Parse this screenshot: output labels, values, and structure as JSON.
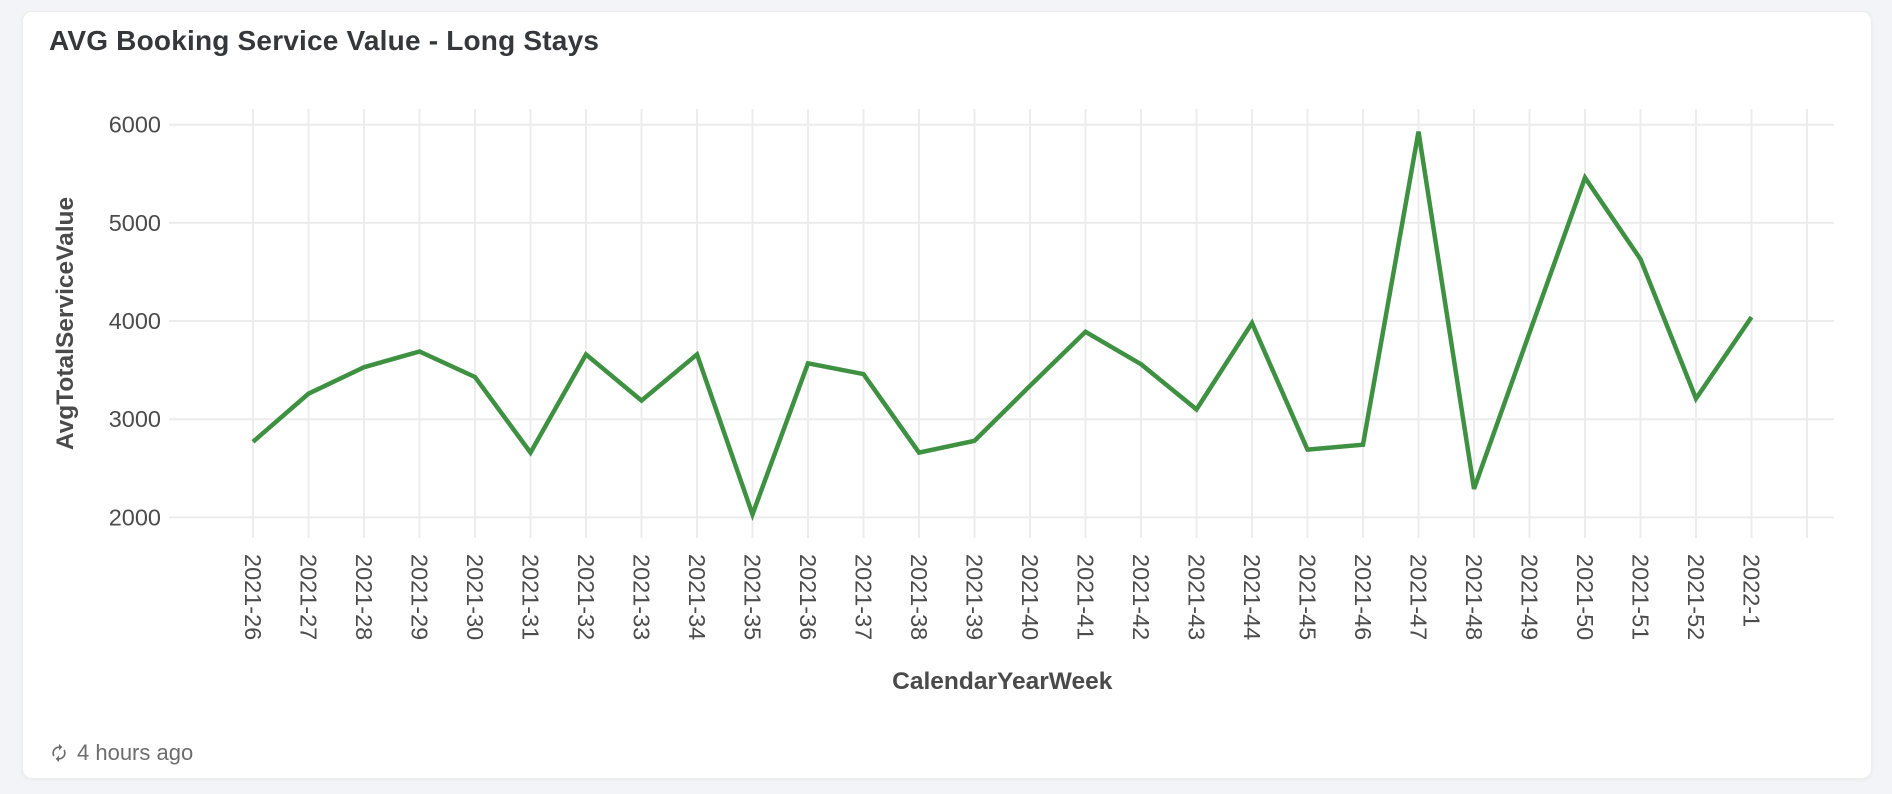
{
  "card": {
    "title": "AVG Booking Service Value - Long Stays"
  },
  "footer": {
    "icon": "refresh-icon",
    "updated_text": "4 hours ago"
  },
  "chart_data": {
    "type": "line",
    "title": "AVG Booking Service Value - Long Stays",
    "xlabel": "CalendarYearWeek",
    "ylabel": "AvgTotalServiceValue",
    "categories": [
      "2021-26",
      "2021-27",
      "2021-28",
      "2021-29",
      "2021-30",
      "2021-31",
      "2021-32",
      "2021-33",
      "2021-34",
      "2021-35",
      "2021-36",
      "2021-37",
      "2021-38",
      "2021-39",
      "2021-40",
      "2021-41",
      "2021-42",
      "2021-43",
      "2021-44",
      "2021-45",
      "2021-46",
      "2021-47",
      "2021-48",
      "2021-49",
      "2021-50",
      "2021-51",
      "2021-52",
      "2022-1"
    ],
    "series": [
      {
        "name": "AvgTotalServiceValue",
        "values": [
          2770,
          3260,
          3530,
          3690,
          3430,
          2660,
          3660,
          3190,
          3660,
          2030,
          3570,
          3460,
          2660,
          2780,
          3340,
          3890,
          3560,
          3100,
          3980,
          2690,
          2740,
          5930,
          2290,
          3880,
          5460,
          4630,
          3210,
          4040
        ]
      }
    ],
    "yticks": [
      2000,
      3000,
      4000,
      5000,
      6000
    ],
    "ylim": [
      1790,
      6160
    ],
    "grid": true,
    "legend_position": "none",
    "x_tick_rotation_deg": 90,
    "line_color": "#3f9142",
    "gridline_color": "#ececec",
    "tick_label_color": "#4c4c4c",
    "axis_name_color": "#4a4a4a"
  }
}
